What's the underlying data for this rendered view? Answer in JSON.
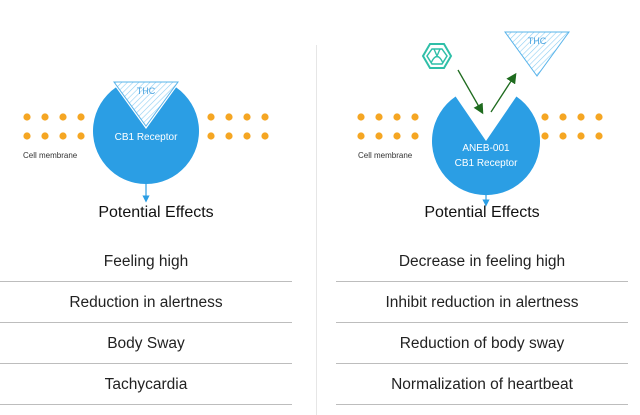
{
  "colors": {
    "receptor": "#2b9ee4",
    "dots": "#f5a623",
    "thc_outline": "#5ab4ea",
    "arrow_green": "#1e6b1e",
    "divider": "#e6e6e6",
    "row_line": "#bdbdbd"
  },
  "left": {
    "membrane_label": "Cell membrane",
    "receptor_label": "CB1 Receptor",
    "thc_label": "THC",
    "effects_title": "Potential Effects",
    "effects": [
      "Feeling high",
      "Reduction in alertness",
      "Body Sway",
      "Tachycardia"
    ]
  },
  "right": {
    "membrane_label": "Cell membrane",
    "receptor_label_line1": "ANEB-001",
    "receptor_label_line2": "CB1 Receptor",
    "thc_label": "THC",
    "effects_title": "Potential Effects",
    "effects": [
      "Decrease in feeling high",
      "Inhibit reduction in alertness",
      "Reduction of body sway",
      "Normalization of heartbeat"
    ]
  }
}
